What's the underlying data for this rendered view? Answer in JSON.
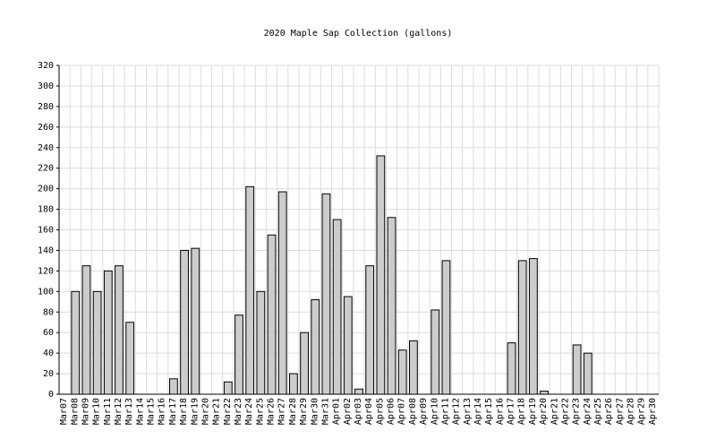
{
  "chart_data": {
    "type": "bar",
    "title": "2020 Maple Sap Collection (gallons)",
    "categories": [
      "Mar07",
      "Mar08",
      "Mar09",
      "Mar10",
      "Mar11",
      "Mar12",
      "Mar13",
      "Mar14",
      "Mar15",
      "Mar16",
      "Mar17",
      "Mar18",
      "Mar19",
      "Mar20",
      "Mar21",
      "Mar22",
      "Mar23",
      "Mar24",
      "Mar25",
      "Mar26",
      "Mar27",
      "Mar28",
      "Mar29",
      "Mar30",
      "Mar31",
      "Apr01",
      "Apr02",
      "Apr03",
      "Apr04",
      "Apr05",
      "Apr06",
      "Apr07",
      "Apr08",
      "Apr09",
      "Apr10",
      "Apr11",
      "Apr12",
      "Apr13",
      "Apr14",
      "Apr15",
      "Apr16",
      "Apr17",
      "Apr18",
      "Apr19",
      "Apr20",
      "Apr21",
      "Apr22",
      "Apr23",
      "Apr24",
      "Apr25",
      "Apr26",
      "Apr27",
      "Apr28",
      "Apr29",
      "Apr30"
    ],
    "values": [
      0,
      100,
      125,
      100,
      120,
      125,
      70,
      0,
      0,
      0,
      15,
      140,
      142,
      0,
      0,
      12,
      77,
      202,
      100,
      155,
      197,
      20,
      60,
      92,
      195,
      170,
      95,
      5,
      125,
      232,
      172,
      43,
      52,
      0,
      82,
      130,
      0,
      0,
      0,
      0,
      0,
      50,
      130,
      132,
      3,
      0,
      0,
      48,
      40,
      0,
      0,
      0,
      0,
      0,
      0
    ],
    "color": "#cccccc",
    "ylim": [
      0,
      320
    ],
    "yticks": [
      0,
      20,
      40,
      60,
      80,
      100,
      120,
      140,
      160,
      180,
      200,
      220,
      240,
      260,
      280,
      300,
      320
    ],
    "grid": true
  }
}
